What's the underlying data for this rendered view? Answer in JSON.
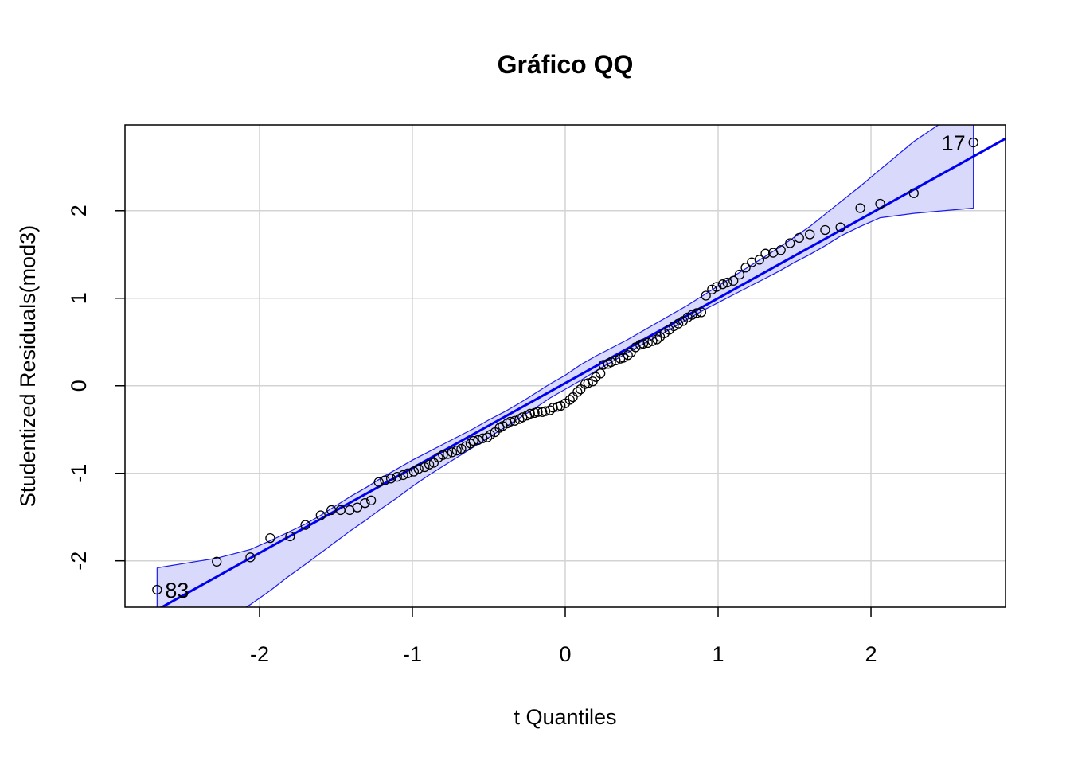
{
  "chart_data": {
    "type": "scatter",
    "title": "Gráfico QQ",
    "xlabel": "t Quantiles",
    "ylabel": "Studentized Residuals(mod3)",
    "xlim": [
      -2.88,
      2.88
    ],
    "ylim": [
      -2.53,
      2.98
    ],
    "xticks": [
      -2,
      -1,
      0,
      1,
      2
    ],
    "yticks": [
      -2,
      -1,
      0,
      1,
      2
    ],
    "grid": true,
    "colors": {
      "points": "#000000",
      "reference_line": "#0000ee",
      "band_fill": "#d9d9fb",
      "band_edge": "#1a1aee",
      "grid": "#d3d3d3"
    },
    "reference_line": {
      "intercept": 0.03,
      "slope": 0.97
    },
    "band_upper": [
      [
        -2.67,
        -2.08
      ],
      [
        -2.28,
        -1.97
      ],
      [
        -2.06,
        -1.87
      ],
      [
        -1.93,
        -1.77
      ],
      [
        -1.82,
        -1.68
      ],
      [
        -1.7,
        -1.58
      ],
      [
        -1.6,
        -1.48
      ],
      [
        -1.5,
        -1.37
      ],
      [
        -1.4,
        -1.26
      ],
      [
        -1.3,
        -1.16
      ],
      [
        -1.2,
        -1.05
      ],
      [
        -1.1,
        -0.95
      ],
      [
        -1.0,
        -0.85
      ],
      [
        -0.9,
        -0.76
      ],
      [
        -0.8,
        -0.67
      ],
      [
        -0.7,
        -0.58
      ],
      [
        -0.6,
        -0.49
      ],
      [
        -0.5,
        -0.39
      ],
      [
        -0.4,
        -0.3
      ],
      [
        -0.3,
        -0.2
      ],
      [
        -0.2,
        -0.09
      ],
      [
        -0.1,
        0.02
      ],
      [
        0.0,
        0.12
      ],
      [
        0.1,
        0.24
      ],
      [
        0.2,
        0.34
      ],
      [
        0.3,
        0.43
      ],
      [
        0.4,
        0.52
      ],
      [
        0.5,
        0.62
      ],
      [
        0.6,
        0.72
      ],
      [
        0.7,
        0.82
      ],
      [
        0.8,
        0.92
      ],
      [
        0.9,
        1.03
      ],
      [
        1.0,
        1.14
      ],
      [
        1.1,
        1.25
      ],
      [
        1.2,
        1.36
      ],
      [
        1.3,
        1.47
      ],
      [
        1.4,
        1.58
      ],
      [
        1.5,
        1.7
      ],
      [
        1.6,
        1.82
      ],
      [
        1.7,
        1.96
      ],
      [
        1.8,
        2.1
      ],
      [
        1.93,
        2.28
      ],
      [
        2.06,
        2.47
      ],
      [
        2.28,
        2.79
      ],
      [
        2.67,
        3.25
      ]
    ],
    "band_lower": [
      [
        -2.67,
        -3.0
      ],
      [
        -2.28,
        -2.73
      ],
      [
        -2.06,
        -2.5
      ],
      [
        -1.93,
        -2.34
      ],
      [
        -1.82,
        -2.19
      ],
      [
        -1.7,
        -2.04
      ],
      [
        -1.6,
        -1.91
      ],
      [
        -1.5,
        -1.78
      ],
      [
        -1.4,
        -1.65
      ],
      [
        -1.3,
        -1.53
      ],
      [
        -1.2,
        -1.4
      ],
      [
        -1.1,
        -1.28
      ],
      [
        -1.0,
        -1.15
      ],
      [
        -0.9,
        -1.03
      ],
      [
        -0.8,
        -0.92
      ],
      [
        -0.7,
        -0.81
      ],
      [
        -0.6,
        -0.7
      ],
      [
        -0.5,
        -0.59
      ],
      [
        -0.4,
        -0.48
      ],
      [
        -0.3,
        -0.37
      ],
      [
        -0.2,
        -0.26
      ],
      [
        -0.1,
        -0.14
      ],
      [
        0.0,
        -0.04
      ],
      [
        0.1,
        0.06
      ],
      [
        0.2,
        0.17
      ],
      [
        0.3,
        0.27
      ],
      [
        0.4,
        0.37
      ],
      [
        0.5,
        0.47
      ],
      [
        0.6,
        0.56
      ],
      [
        0.7,
        0.66
      ],
      [
        0.8,
        0.76
      ],
      [
        0.9,
        0.86
      ],
      [
        1.0,
        0.95
      ],
      [
        1.1,
        1.04
      ],
      [
        1.2,
        1.13
      ],
      [
        1.3,
        1.22
      ],
      [
        1.4,
        1.31
      ],
      [
        1.5,
        1.41
      ],
      [
        1.6,
        1.5
      ],
      [
        1.7,
        1.6
      ],
      [
        1.8,
        1.71
      ],
      [
        1.93,
        1.82
      ],
      [
        2.06,
        1.92
      ],
      [
        2.28,
        1.97
      ],
      [
        2.67,
        2.03
      ]
    ],
    "points": [
      [
        -2.67,
        -2.33
      ],
      [
        -2.28,
        -2.01
      ],
      [
        -2.06,
        -1.96
      ],
      [
        -1.93,
        -1.74
      ],
      [
        -1.8,
        -1.72
      ],
      [
        -1.7,
        -1.59
      ],
      [
        -1.6,
        -1.48
      ],
      [
        -1.53,
        -1.42
      ],
      [
        -1.47,
        -1.42
      ],
      [
        -1.41,
        -1.42
      ],
      [
        -1.36,
        -1.39
      ],
      [
        -1.31,
        -1.34
      ],
      [
        -1.27,
        -1.31
      ],
      [
        -1.22,
        -1.1
      ],
      [
        -1.18,
        -1.08
      ],
      [
        -1.14,
        -1.06
      ],
      [
        -1.1,
        -1.04
      ],
      [
        -1.06,
        -1.02
      ],
      [
        -1.03,
        -1.0
      ],
      [
        -0.99,
        -0.98
      ],
      [
        -0.96,
        -0.95
      ],
      [
        -0.92,
        -0.93
      ],
      [
        -0.89,
        -0.9
      ],
      [
        -0.86,
        -0.88
      ],
      [
        -0.83,
        -0.82
      ],
      [
        -0.8,
        -0.79
      ],
      [
        -0.77,
        -0.78
      ],
      [
        -0.74,
        -0.76
      ],
      [
        -0.71,
        -0.74
      ],
      [
        -0.68,
        -0.72
      ],
      [
        -0.65,
        -0.69
      ],
      [
        -0.62,
        -0.66
      ],
      [
        -0.6,
        -0.63
      ],
      [
        -0.57,
        -0.62
      ],
      [
        -0.54,
        -0.6
      ],
      [
        -0.51,
        -0.59
      ],
      [
        -0.49,
        -0.56
      ],
      [
        -0.46,
        -0.53
      ],
      [
        -0.43,
        -0.48
      ],
      [
        -0.41,
        -0.46
      ],
      [
        -0.38,
        -0.43
      ],
      [
        -0.36,
        -0.41
      ],
      [
        -0.33,
        -0.4
      ],
      [
        -0.3,
        -0.38
      ],
      [
        -0.28,
        -0.36
      ],
      [
        -0.25,
        -0.34
      ],
      [
        -0.23,
        -0.32
      ],
      [
        -0.2,
        -0.31
      ],
      [
        -0.18,
        -0.3
      ],
      [
        -0.15,
        -0.3
      ],
      [
        -0.13,
        -0.29
      ],
      [
        -0.1,
        -0.28
      ],
      [
        -0.08,
        -0.25
      ],
      [
        -0.05,
        -0.24
      ],
      [
        -0.03,
        -0.23
      ],
      [
        0.0,
        -0.2
      ],
      [
        0.03,
        -0.16
      ],
      [
        0.05,
        -0.13
      ],
      [
        0.08,
        -0.07
      ],
      [
        0.1,
        -0.04
      ],
      [
        0.13,
        0.02
      ],
      [
        0.15,
        0.03
      ],
      [
        0.18,
        0.05
      ],
      [
        0.2,
        0.1
      ],
      [
        0.23,
        0.14
      ],
      [
        0.25,
        0.24
      ],
      [
        0.28,
        0.25
      ],
      [
        0.3,
        0.27
      ],
      [
        0.33,
        0.29
      ],
      [
        0.36,
        0.31
      ],
      [
        0.38,
        0.32
      ],
      [
        0.41,
        0.35
      ],
      [
        0.43,
        0.38
      ],
      [
        0.46,
        0.44
      ],
      [
        0.49,
        0.47
      ],
      [
        0.51,
        0.48
      ],
      [
        0.54,
        0.49
      ],
      [
        0.57,
        0.51
      ],
      [
        0.6,
        0.53
      ],
      [
        0.62,
        0.56
      ],
      [
        0.65,
        0.6
      ],
      [
        0.68,
        0.64
      ],
      [
        0.71,
        0.68
      ],
      [
        0.74,
        0.71
      ],
      [
        0.77,
        0.74
      ],
      [
        0.8,
        0.78
      ],
      [
        0.83,
        0.81
      ],
      [
        0.86,
        0.83
      ],
      [
        0.89,
        0.84
      ],
      [
        0.92,
        1.03
      ],
      [
        0.96,
        1.1
      ],
      [
        0.99,
        1.13
      ],
      [
        1.03,
        1.16
      ],
      [
        1.06,
        1.18
      ],
      [
        1.1,
        1.2
      ],
      [
        1.14,
        1.27
      ],
      [
        1.18,
        1.35
      ],
      [
        1.22,
        1.41
      ],
      [
        1.27,
        1.44
      ],
      [
        1.31,
        1.51
      ],
      [
        1.36,
        1.52
      ],
      [
        1.41,
        1.55
      ],
      [
        1.47,
        1.63
      ],
      [
        1.53,
        1.69
      ],
      [
        1.6,
        1.73
      ],
      [
        1.7,
        1.78
      ],
      [
        1.8,
        1.81
      ],
      [
        1.93,
        2.03
      ],
      [
        2.06,
        2.08
      ],
      [
        2.28,
        2.2
      ],
      [
        2.67,
        2.78
      ]
    ],
    "labels": [
      {
        "text": "83",
        "x": -2.67,
        "y": -2.33,
        "side": "right"
      },
      {
        "text": "17",
        "x": 2.67,
        "y": 2.78,
        "side": "left"
      }
    ]
  }
}
